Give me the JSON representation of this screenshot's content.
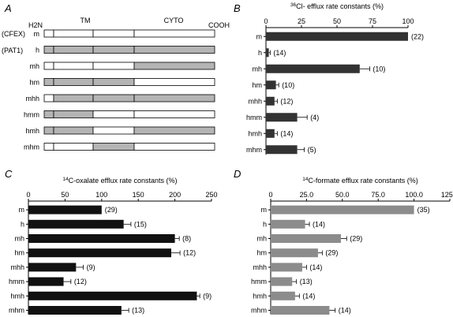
{
  "panels": {
    "A": {
      "letter": "A",
      "labels": {
        "n_term": "H2N",
        "tm": "TM",
        "cyto": "CYTO",
        "c_term": "COOH"
      },
      "parent_notes": [
        "(CFEX)",
        "(PAT1)"
      ],
      "colors": {
        "cfex": "#ffffff",
        "pat1": "#b4b4b4"
      },
      "constructs": [
        {
          "name": "m",
          "segments": [
            "cfex",
            "cfex",
            "cfex",
            "cfex"
          ]
        },
        {
          "name": "h",
          "segments": [
            "pat1",
            "pat1",
            "pat1",
            "pat1"
          ]
        },
        {
          "name": "mh",
          "segments": [
            "cfex",
            "cfex",
            "cfex",
            "pat1"
          ]
        },
        {
          "name": "hm",
          "segments": [
            "pat1",
            "pat1",
            "pat1",
            "cfex"
          ]
        },
        {
          "name": "mhh",
          "segments": [
            "cfex",
            "pat1",
            "pat1",
            "pat1"
          ]
        },
        {
          "name": "hmm",
          "segments": [
            "pat1",
            "pat1",
            "cfex",
            "cfex"
          ]
        },
        {
          "name": "hmh",
          "segments": [
            "pat1",
            "pat1",
            "cfex",
            "pat1"
          ]
        },
        {
          "name": "mhm",
          "segments": [
            "cfex",
            "cfex",
            "pat1",
            "cfex"
          ]
        }
      ]
    }
  },
  "chart_data": [
    {
      "panel": "B",
      "type": "bar",
      "orientation": "horizontal",
      "title_prefix": "36",
      "title": "Cl- efflux rate constants (%)",
      "categories": [
        "m",
        "h",
        "mh",
        "hm",
        "mhh",
        "hmm",
        "hmh",
        "mhm"
      ],
      "values": [
        100,
        2,
        66,
        7,
        6,
        22,
        6,
        22
      ],
      "errors": [
        0,
        1,
        7,
        2,
        2,
        7,
        2,
        5
      ],
      "n_labels": [
        "(22)",
        "(14)",
        "(10)",
        "(10)",
        "(12)",
        "(4)",
        "(14)",
        "(5)"
      ],
      "xlim": [
        0,
        100
      ],
      "xticks": [
        0,
        25,
        50,
        75,
        100
      ],
      "xtick_labels": [
        "0",
        "25",
        "50",
        "75",
        "100"
      ],
      "color": "#333333"
    },
    {
      "panel": "C",
      "type": "bar",
      "orientation": "horizontal",
      "title_prefix": "14",
      "title": "C-oxalate efflux rate constants (%)",
      "categories": [
        "m",
        "h",
        "mh",
        "hm",
        "mhh",
        "hmm",
        "hmh",
        "mhm"
      ],
      "values": [
        100,
        130,
        200,
        195,
        65,
        48,
        230,
        127
      ],
      "errors": [
        0,
        10,
        6,
        12,
        10,
        10,
        4,
        10
      ],
      "n_labels": [
        "(29)",
        "(15)",
        "(8)",
        "(12)",
        "(9)",
        "(12)",
        "(9)",
        "(13)"
      ],
      "xlim": [
        0,
        250
      ],
      "xticks": [
        0,
        50,
        100,
        150,
        200,
        250
      ],
      "xtick_labels": [
        "0",
        "50",
        "100",
        "150",
        "200",
        "250"
      ],
      "color": "#111111"
    },
    {
      "panel": "D",
      "type": "bar",
      "orientation": "horizontal",
      "title_prefix": "14",
      "title": "C-formate efflux rate constants (%)",
      "categories": [
        "m",
        "h",
        "mh",
        "hm",
        "mhh",
        "hmm",
        "hmh",
        "mhm"
      ],
      "values": [
        100,
        24,
        49,
        33,
        22,
        15,
        17,
        41
      ],
      "errors": [
        0,
        3,
        4,
        3,
        3,
        3,
        3,
        4
      ],
      "n_labels": [
        "(35)",
        "(14)",
        "(29)",
        "(29)",
        "(14)",
        "(13)",
        "(14)",
        "(14)"
      ],
      "xlim": [
        0,
        125
      ],
      "xticks": [
        0,
        25,
        50,
        75,
        100,
        125
      ],
      "xtick_labels": [
        "0",
        "25.0",
        "50.0",
        "75.0",
        "100.0",
        "125.0"
      ],
      "color": "#8c8c8c"
    }
  ]
}
